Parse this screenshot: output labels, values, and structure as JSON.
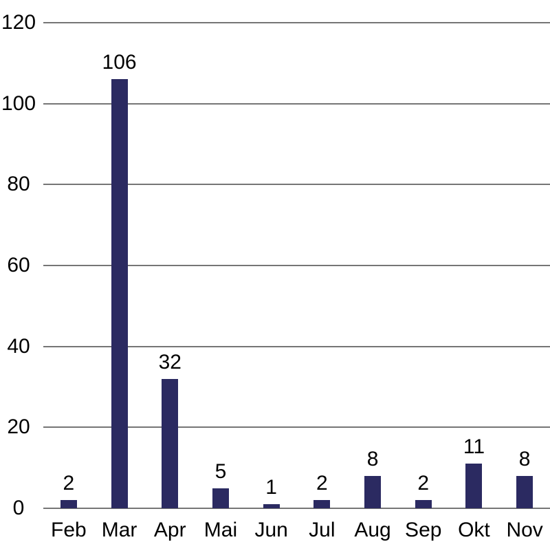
{
  "chart_data": {
    "type": "bar",
    "categories": [
      "Feb",
      "Mar",
      "Apr",
      "Mai",
      "Jun",
      "Jul",
      "Aug",
      "Sep",
      "Okt",
      "Nov"
    ],
    "values": [
      2,
      106,
      32,
      5,
      1,
      2,
      8,
      2,
      11,
      8
    ],
    "title": "",
    "xlabel": "",
    "ylabel": "",
    "ylim": [
      0,
      120
    ],
    "yticks": [
      0,
      20,
      40,
      60,
      80,
      100,
      120
    ],
    "data_labels": [
      2,
      106,
      32,
      5,
      1,
      2,
      8,
      2,
      11,
      8
    ],
    "grid": "horizontal",
    "legend_position": "none",
    "bar_color": "#2b2a61",
    "grid_color": "#757575",
    "text_color": "#000000"
  }
}
